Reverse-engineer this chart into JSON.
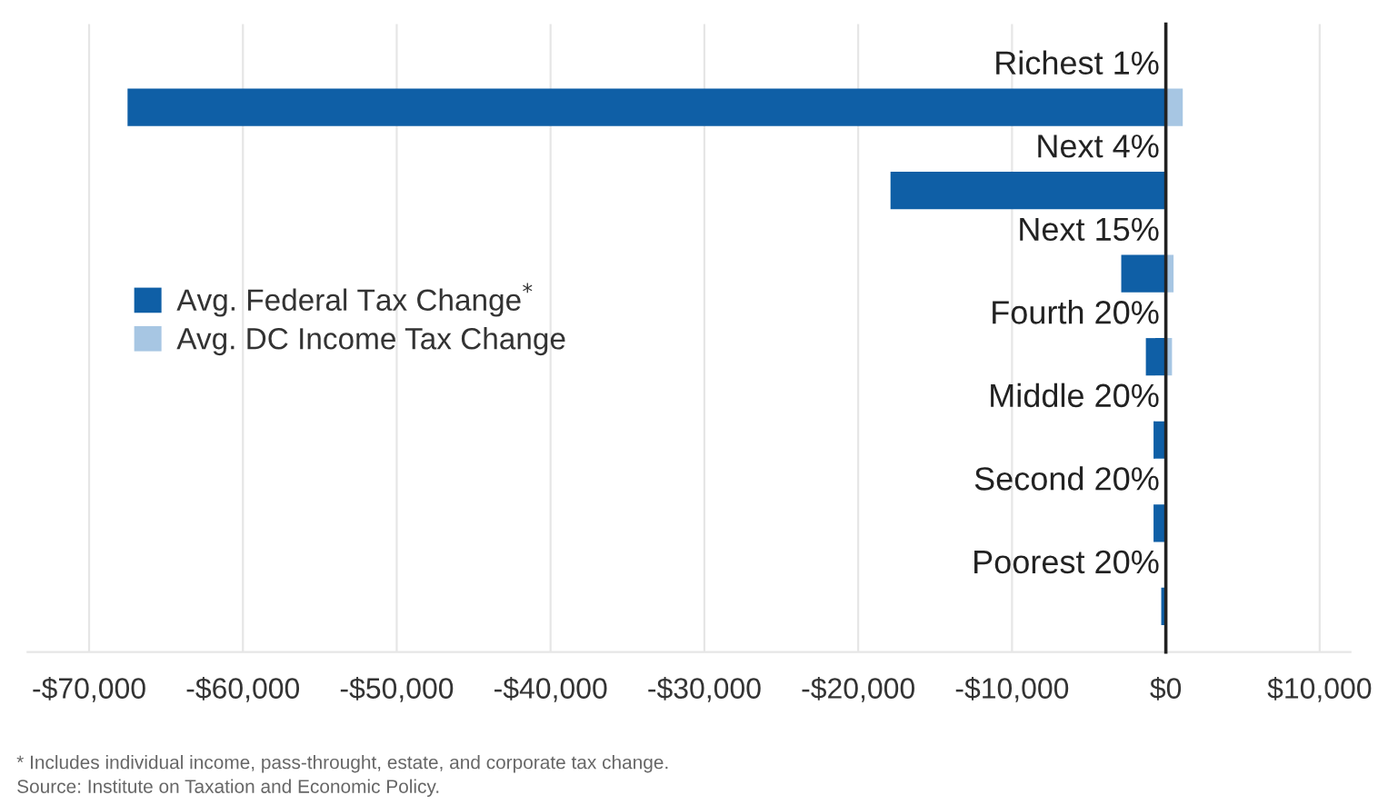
{
  "chart_data": {
    "type": "bar",
    "orientation": "horizontal",
    "categories": [
      "Richest 1%",
      "Next 4%",
      "Next 15%",
      "Fourth 20%",
      "Middle 20%",
      "Second 20%",
      "Poorest 20%"
    ],
    "series": [
      {
        "name": "Avg. Federal Tax Change$^{*}$",
        "color": "#0f5fa6",
        "values": [
          -67500,
          -17900,
          -2900,
          -1300,
          -800,
          -800,
          -300
        ]
      },
      {
        "name": "Avg. DC Income Tax Change",
        "color": "#a7c6e3",
        "values": [
          1100,
          0,
          500,
          400,
          null,
          null,
          null
        ]
      }
    ],
    "xlim": [
      -74000,
      12000
    ],
    "xticks": [
      {
        "value": -70000,
        "label": "-$70,000"
      },
      {
        "value": -60000,
        "label": "-$60,000"
      },
      {
        "value": -50000,
        "label": "-$50,000"
      },
      {
        "value": -40000,
        "label": "-$40,000"
      },
      {
        "value": -30000,
        "label": "-$30,000"
      },
      {
        "value": -20000,
        "label": "-$20,000"
      },
      {
        "value": -10000,
        "label": "-$10,000"
      },
      {
        "value": 0,
        "label": "$0"
      },
      {
        "value": 10000,
        "label": "$10,000"
      }
    ],
    "grid": "x",
    "legend": "left",
    "annotations": [
      "* Includes individual income, pass-throught, estate, and corporate tax change.",
      "Source: Institute on Taxation and Economic Policy."
    ]
  }
}
